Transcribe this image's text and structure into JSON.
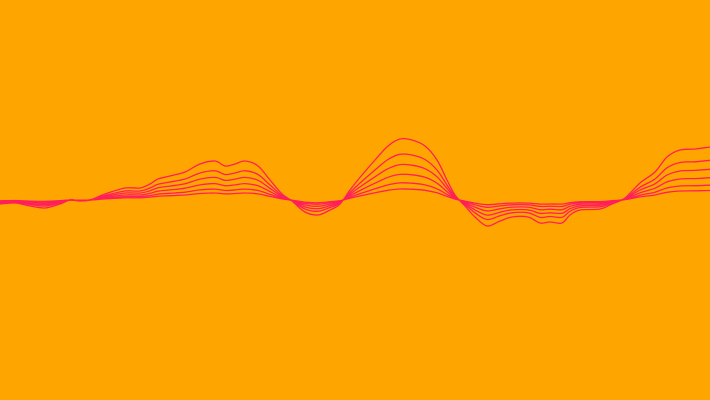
{
  "colors": {
    "background": "#FFA500",
    "line": "#FF1F5A"
  },
  "waveform": {
    "layers": 6,
    "profile": [
      [
        0,
        -4
      ],
      [
        15,
        -3
      ],
      [
        30,
        -6
      ],
      [
        45,
        -8
      ],
      [
        60,
        -4
      ],
      [
        70,
        0
      ],
      [
        80,
        -1
      ],
      [
        90,
        0
      ],
      [
        105,
        6
      ],
      [
        125,
        12
      ],
      [
        140,
        12
      ],
      [
        150,
        16
      ],
      [
        158,
        21
      ],
      [
        170,
        24
      ],
      [
        185,
        28
      ],
      [
        200,
        36
      ],
      [
        215,
        39
      ],
      [
        225,
        34
      ],
      [
        235,
        36
      ],
      [
        245,
        39
      ],
      [
        258,
        34
      ],
      [
        270,
        20
      ],
      [
        282,
        6
      ],
      [
        292,
        -1
      ],
      [
        305,
        -12
      ],
      [
        318,
        -15
      ],
      [
        330,
        -10
      ],
      [
        340,
        -4
      ],
      [
        350,
        10
      ],
      [
        362,
        25
      ],
      [
        375,
        40
      ],
      [
        388,
        54
      ],
      [
        400,
        61
      ],
      [
        412,
        60
      ],
      [
        425,
        54
      ],
      [
        437,
        40
      ],
      [
        447,
        20
      ],
      [
        455,
        5
      ],
      [
        465,
        -6
      ],
      [
        475,
        -17
      ],
      [
        487,
        -26
      ],
      [
        500,
        -21
      ],
      [
        512,
        -17
      ],
      [
        528,
        -17
      ],
      [
        540,
        -23
      ],
      [
        550,
        -22
      ],
      [
        562,
        -23
      ],
      [
        570,
        -15
      ],
      [
        580,
        -10
      ],
      [
        600,
        -9
      ],
      [
        612,
        -4
      ],
      [
        625,
        2
      ],
      [
        640,
        17
      ],
      [
        655,
        28
      ],
      [
        667,
        43
      ],
      [
        680,
        50
      ],
      [
        695,
        51
      ],
      [
        710,
        53
      ]
    ]
  }
}
